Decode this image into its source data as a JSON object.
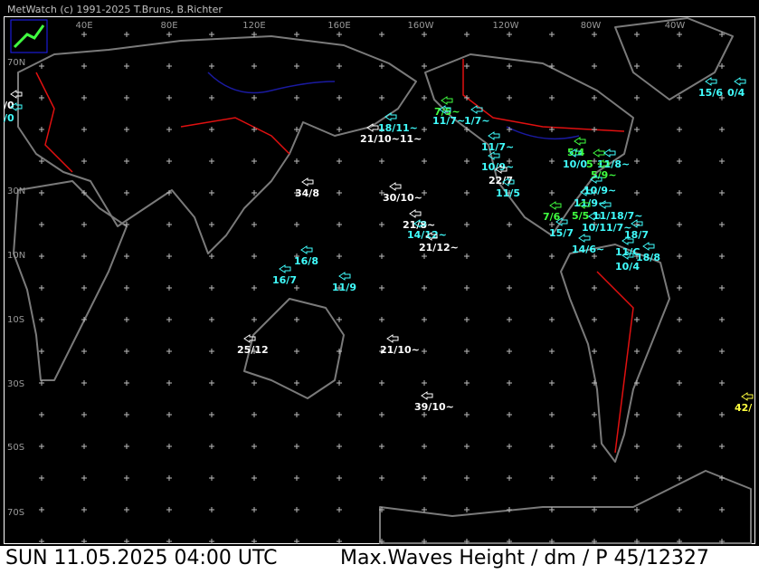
{
  "header": {
    "credit": "MetWatch  (c) 1991-2025 T.Bruns, B.Richter"
  },
  "longitude_labels": [
    "40E",
    "80E",
    "120E",
    "160E",
    "160W",
    "120W",
    "80W",
    "40W"
  ],
  "latitude_labels": [
    "70N",
    "30N",
    "10N",
    "10S",
    "30S",
    "50S",
    "70S"
  ],
  "stations": [
    {
      "label": "7/5~",
      "color": "#40ff40"
    },
    {
      "label": "18/11~",
      "color": "#40ffff"
    },
    {
      "label": "11/7~",
      "color": "#40ffff"
    },
    {
      "label": "1/7~",
      "color": "#40ffff"
    },
    {
      "label": "21/10~11~",
      "color": "#ffffff"
    },
    {
      "label": "11/7~",
      "color": "#40ffff"
    },
    {
      "label": "10/9~",
      "color": "#40ffff"
    },
    {
      "label": "22/7",
      "color": "#ffffff"
    },
    {
      "label": "11/5",
      "color": "#40ffff"
    },
    {
      "label": "5/4",
      "color": "#40ff40"
    },
    {
      "label": "10/0",
      "color": "#40ffff"
    },
    {
      "label": "5",
      "color": "#40ff40"
    },
    {
      "label": "11/8~",
      "color": "#40ffff"
    },
    {
      "label": "5/9~",
      "color": "#40ff40"
    },
    {
      "label": "10/9~",
      "color": "#40ffff"
    },
    {
      "label": "11/9~",
      "color": "#40ffff"
    },
    {
      "label": "7/6",
      "color": "#40ff40"
    },
    {
      "label": "5/5",
      "color": "#40ff40"
    },
    {
      "label": "11/18/7~",
      "color": "#40ffff"
    },
    {
      "label": "15/7",
      "color": "#40ffff"
    },
    {
      "label": "10/11/7~",
      "color": "#40ffff"
    },
    {
      "label": "18/7",
      "color": "#40ffff"
    },
    {
      "label": "14/6~",
      "color": "#40ffff"
    },
    {
      "label": "11/C",
      "color": "#40ffff"
    },
    {
      "label": "18/8",
      "color": "#40ffff"
    },
    {
      "label": "10/4",
      "color": "#40ffff"
    },
    {
      "label": "34/8",
      "color": "#ffffff"
    },
    {
      "label": "30/10~",
      "color": "#ffffff"
    },
    {
      "label": "21/8~",
      "color": "#ffffff"
    },
    {
      "label": "14/12~",
      "color": "#40ffff"
    },
    {
      "label": "21/12~",
      "color": "#ffffff"
    },
    {
      "label": "16/8",
      "color": "#40ffff"
    },
    {
      "label": "16/7",
      "color": "#40ffff"
    },
    {
      "label": "11/9",
      "color": "#40ffff"
    },
    {
      "label": "25/12",
      "color": "#ffffff"
    },
    {
      "label": "21/10~",
      "color": "#ffffff"
    },
    {
      "label": "39/10~",
      "color": "#ffffff"
    },
    {
      "label": "15/6",
      "color": "#40ffff"
    },
    {
      "label": "0/4",
      "color": "#40ffff"
    },
    {
      "label": "42/",
      "color": "#ffff40"
    },
    {
      "label": "/0",
      "color": "#ffffff"
    },
    {
      "label": "/0",
      "color": "#40ffff"
    }
  ],
  "footer": {
    "datetime": "SUN 11.05.2025 04:00 UTC",
    "product": "Max.Waves Height / dm / P 45/12327"
  }
}
